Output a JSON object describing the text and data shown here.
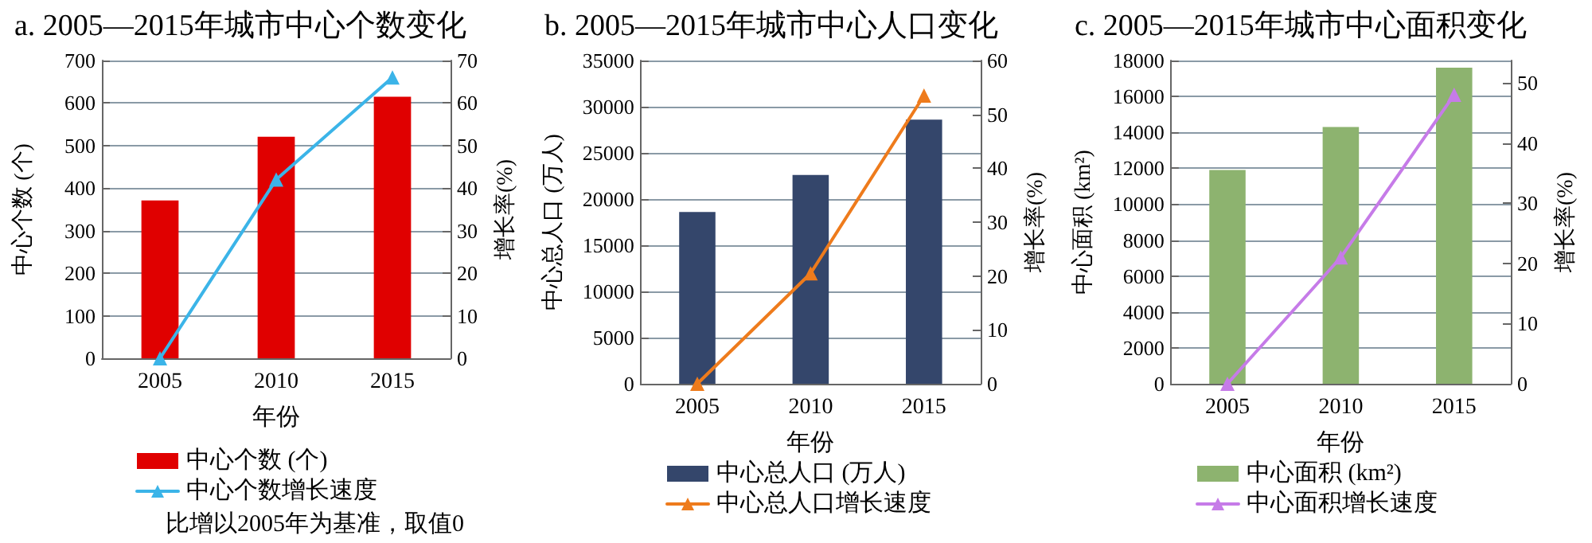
{
  "chart_data": [
    {
      "type": "bar",
      "title": "a. 2005—2015年城市中心个数变化",
      "xlabel": "年份",
      "ylabel": "中心个数 (个)",
      "y2label": "增长率(%)",
      "categories": [
        "2005",
        "2010",
        "2015"
      ],
      "series": [
        {
          "name": "中心个数 (个)",
          "color": "#e00000",
          "values": [
            371,
            521,
            615
          ]
        },
        {
          "type": "line",
          "axis": "y2",
          "name": "中心个数增长速度",
          "color": "#3bb4e8",
          "values": [
            0,
            42,
            66
          ]
        }
      ],
      "ylim": [
        0,
        700
      ],
      "yticks": [
        0,
        100,
        200,
        300,
        400,
        500,
        600,
        700
      ],
      "y2lim": [
        0,
        70
      ],
      "y2ticks": [
        0,
        10,
        20,
        30,
        40,
        50,
        60,
        70
      ],
      "grid": "y",
      "legend": "bottom",
      "marker": "triangle",
      "annotations": [
        "比增以2005年为基准，取值0"
      ]
    },
    {
      "type": "bar",
      "title": "b. 2005—2015年城市中心人口变化",
      "xlabel": "年份",
      "ylabel": "中心总人口 (万人)",
      "y2label": "增长率(%)",
      "categories": [
        "2005",
        "2010",
        "2015"
      ],
      "series": [
        {
          "name": "中心总人口 (万人)",
          "color": "#34466b",
          "values": [
            18600,
            22600,
            28600
          ]
        },
        {
          "type": "line",
          "axis": "y2",
          "name": "中心总人口增长速度",
          "color": "#ee7b1c",
          "values": [
            0,
            20.5,
            53.5
          ]
        }
      ],
      "ylim": [
        0,
        35000
      ],
      "yticks": [
        0,
        5000,
        10000,
        15000,
        20000,
        25000,
        30000,
        35000
      ],
      "y2lim": [
        0,
        60
      ],
      "y2ticks": [
        0,
        10,
        20,
        30,
        40,
        50,
        60
      ],
      "grid": "y",
      "legend": "bottom",
      "marker": "triangle"
    },
    {
      "type": "bar",
      "title": "c. 2005—2015年城市中心面积变化",
      "xlabel": "年份",
      "ylabel": "中心面积 (km²)",
      "y2label": "增长率(%)",
      "categories": [
        "2005",
        "2010",
        "2015"
      ],
      "series": [
        {
          "name": "中心面积 (km²)",
          "color": "#8db36f",
          "values": [
            11900,
            14300,
            17600
          ]
        },
        {
          "type": "line",
          "axis": "y2",
          "name": "中心面积增长速度",
          "color": "#c67be8",
          "values": [
            0,
            21,
            48
          ]
        }
      ],
      "ylim": [
        0,
        18000
      ],
      "yticks": [
        0,
        2000,
        4000,
        6000,
        8000,
        10000,
        12000,
        14000,
        16000,
        18000
      ],
      "y2lim": [
        0,
        53.7
      ],
      "y2ticks": [
        0,
        10,
        20,
        30,
        40,
        50
      ],
      "grid": "y",
      "legend": "bottom",
      "marker": "triangle"
    }
  ]
}
